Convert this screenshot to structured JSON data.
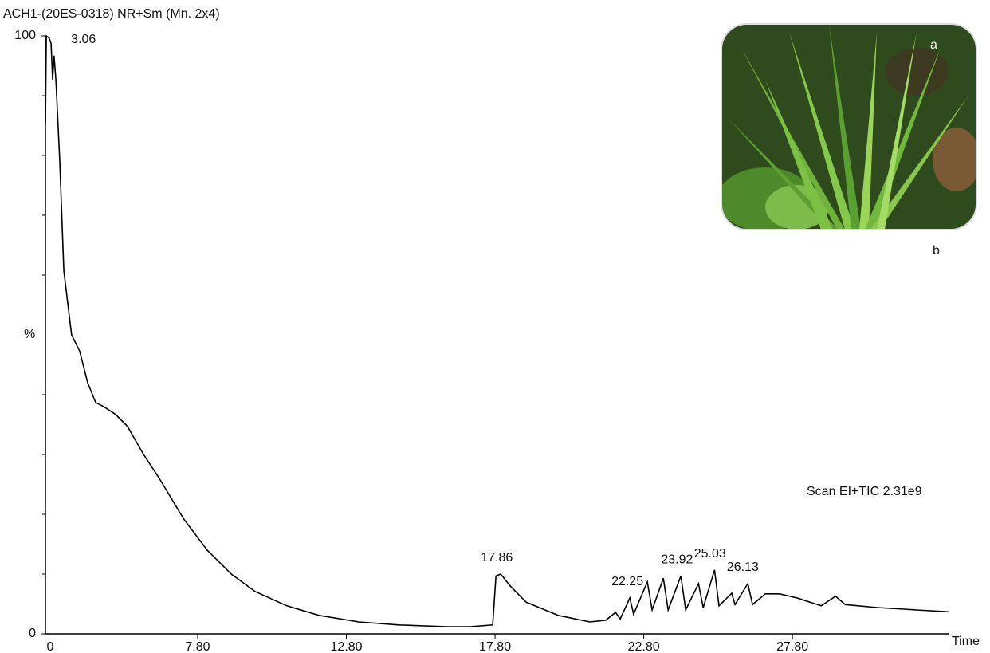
{
  "chart_data": {
    "type": "line",
    "title": "ACH1-(20ES-0318) NR+Sm (Mn. 2x4)",
    "subtitle": "Scan EI+TIC 2.31e9",
    "x_label": "Time",
    "y_label": "%",
    "x_start_label": "0",
    "photo_labels": [
      "a",
      "b"
    ],
    "color": "#000000",
    "xlim": [
      2.68,
      33.05
    ],
    "xticks": [
      {
        "value": 7.8,
        "label": "7.80"
      },
      {
        "value": 12.8,
        "label": "12.80"
      },
      {
        "value": 17.8,
        "label": "17.80"
      },
      {
        "value": 22.8,
        "label": "22.80"
      },
      {
        "value": 27.8,
        "label": "27.80"
      }
    ],
    "ylim": [
      0,
      100
    ],
    "yticks": [
      0,
      100
    ],
    "yminor_ticks": [
      10,
      20,
      30,
      40,
      60,
      70,
      80,
      90
    ],
    "peak_labels": [
      3.06,
      17.86,
      22.25,
      23.92,
      25.03,
      26.13
    ],
    "x": [
      2.68,
      2.71,
      2.81,
      2.87,
      2.92,
      2.97,
      3.03,
      3.16,
      3.3,
      3.56,
      3.83,
      4.1,
      4.37,
      4.64,
      5.04,
      5.44,
      5.98,
      6.51,
      7.32,
      8.12,
      8.93,
      9.73,
      10.8,
      11.88,
      13.22,
      14.56,
      16.17,
      16.97,
      17.72,
      17.83,
      17.99,
      18.31,
      18.85,
      19.92,
      20.99,
      21.53,
      21.85,
      22.01,
      22.33,
      22.46,
      22.92,
      23.08,
      23.46,
      23.62,
      24.05,
      24.21,
      24.64,
      24.8,
      25.18,
      25.33,
      25.76,
      25.87,
      26.3,
      26.46,
      26.89,
      27.37,
      27.96,
      28.77,
      29.25,
      29.58,
      30.65,
      31.98,
      33.05
    ],
    "values": [
      85.3,
      100,
      99.6,
      98.7,
      92.7,
      96.7,
      92.7,
      79.3,
      60.7,
      50,
      47.3,
      42,
      38.7,
      38,
      36.7,
      34.7,
      30,
      26,
      19.3,
      14,
      10,
      7.1,
      4.7,
      3.1,
      2,
      1.5,
      1.2,
      1.2,
      1.5,
      9.7,
      10,
      8,
      5.3,
      3.1,
      2,
      2.3,
      3.6,
      2.5,
      6,
      3.3,
      8.7,
      4,
      9.3,
      4,
      9.7,
      4,
      8.4,
      4.4,
      10.7,
      4.7,
      6.8,
      4.9,
      8.4,
      4.9,
      6.7,
      6.7,
      6,
      4.7,
      6.3,
      4.9,
      4.4,
      4,
      3.7
    ]
  }
}
